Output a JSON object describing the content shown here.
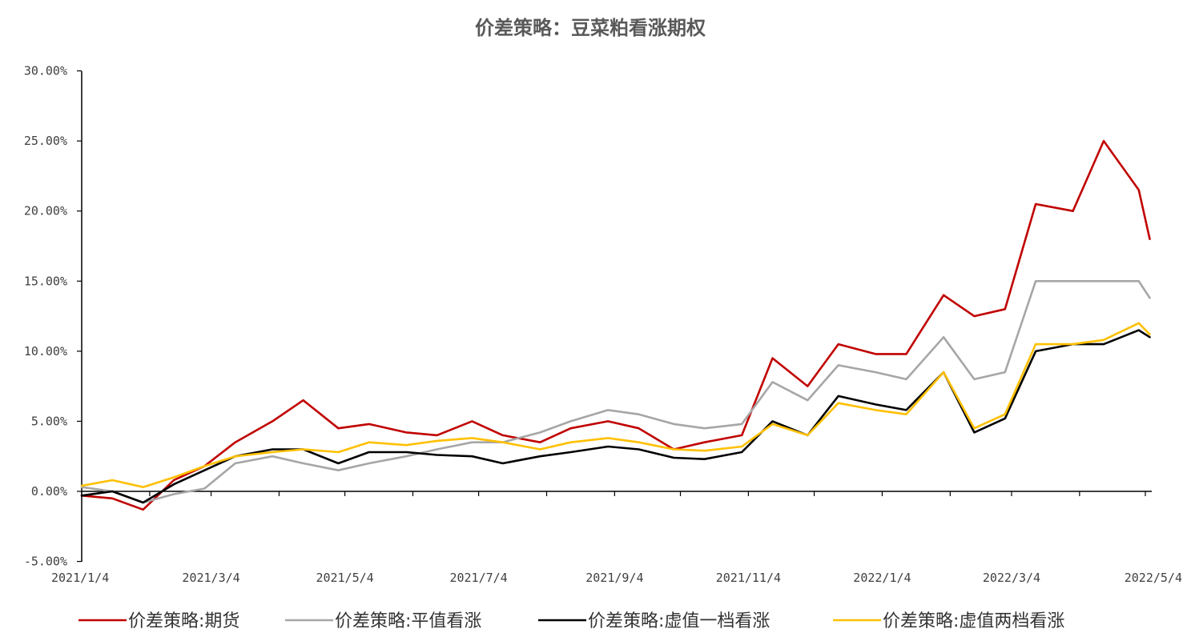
{
  "chart_data": {
    "type": "line",
    "title": "价差策略：豆菜粕看涨期权",
    "xlabel": "",
    "ylabel": "",
    "ylim": [
      -5,
      30
    ],
    "y_ticks": [
      "30.00%",
      "25.00%",
      "20.00%",
      "15.00%",
      "10.00%",
      "5.00%",
      "0.00%",
      "-5.00%"
    ],
    "x_ticks": [
      "2021/1/4",
      "2021/3/4",
      "2021/5/4",
      "2021/7/4",
      "2021/9/4",
      "2021/11/4",
      "2022/1/4",
      "2022/3/4",
      "2022/5/4"
    ],
    "grid": false,
    "legend_position": "bottom",
    "x": [
      "2021/1/4",
      "2021/1/18",
      "2021/2/1",
      "2021/2/15",
      "2021/3/1",
      "2021/3/15",
      "2021/4/1",
      "2021/4/15",
      "2021/5/1",
      "2021/5/15",
      "2021/6/1",
      "2021/6/15",
      "2021/7/1",
      "2021/7/15",
      "2021/8/1",
      "2021/8/15",
      "2021/9/1",
      "2021/9/15",
      "2021/10/1",
      "2021/10/15",
      "2021/11/1",
      "2021/11/15",
      "2021/12/1",
      "2021/12/15",
      "2022/1/1",
      "2022/1/15",
      "2022/2/1",
      "2022/2/15",
      "2022/3/1",
      "2022/3/15",
      "2022/4/1",
      "2022/4/15",
      "2022/5/1",
      "2022/5/6"
    ],
    "series": [
      {
        "name": "价差策略:期货",
        "color": "#C00000",
        "values": [
          -0.3,
          -0.5,
          -1.3,
          0.8,
          1.8,
          3.5,
          5.0,
          6.5,
          4.5,
          4.8,
          4.2,
          4.0,
          5.0,
          4.0,
          3.5,
          4.5,
          5.0,
          4.5,
          3.0,
          3.5,
          4.0,
          9.5,
          7.5,
          10.5,
          9.8,
          9.8,
          14.0,
          12.5,
          13.0,
          20.5,
          20.0,
          25.0,
          21.5,
          18.0
        ]
      },
      {
        "name": "价差策略:平值看涨",
        "color": "#A6A6A6",
        "values": [
          0.3,
          0.0,
          -0.8,
          -0.2,
          0.2,
          2.0,
          2.5,
          2.0,
          1.5,
          2.0,
          2.5,
          3.0,
          3.5,
          3.5,
          4.2,
          5.0,
          5.8,
          5.5,
          4.8,
          4.5,
          4.8,
          7.8,
          6.5,
          9.0,
          8.5,
          8.0,
          11.0,
          8.0,
          8.5,
          15.0,
          15.0,
          15.0,
          15.0,
          13.8
        ]
      },
      {
        "name": "价差策略:虚值一档看涨",
        "color": "#000000",
        "values": [
          -0.3,
          0.0,
          -0.8,
          0.5,
          1.5,
          2.5,
          3.0,
          3.0,
          2.0,
          2.8,
          2.8,
          2.6,
          2.5,
          2.0,
          2.5,
          2.8,
          3.2,
          3.0,
          2.4,
          2.3,
          2.8,
          5.0,
          4.0,
          6.8,
          6.2,
          5.8,
          8.5,
          4.2,
          5.2,
          10.0,
          10.5,
          10.5,
          11.5,
          11.0
        ]
      },
      {
        "name": "价差策略:虚值两档看涨",
        "color": "#FFC000",
        "values": [
          0.4,
          0.8,
          0.3,
          1.0,
          1.8,
          2.5,
          2.8,
          3.0,
          2.8,
          3.5,
          3.3,
          3.6,
          3.8,
          3.5,
          3.0,
          3.5,
          3.8,
          3.5,
          3.0,
          2.9,
          3.2,
          4.8,
          4.0,
          6.3,
          5.8,
          5.5,
          8.5,
          4.5,
          5.5,
          10.5,
          10.5,
          10.8,
          12.0,
          11.2
        ]
      }
    ]
  }
}
